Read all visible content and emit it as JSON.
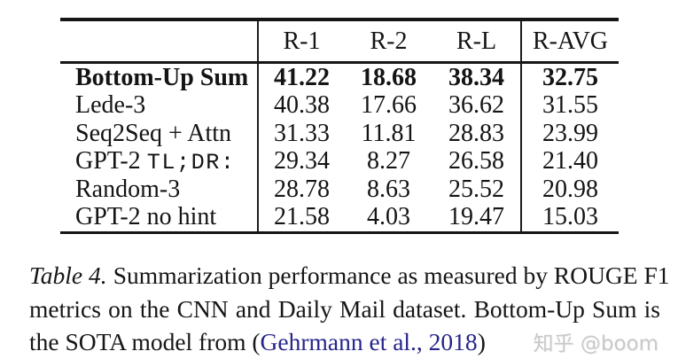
{
  "colors": {
    "text": "#141414",
    "rule_black": "#161616",
    "citation_blue": "#26268c",
    "watermark_gray": "#c9c9c9",
    "background": "#ffffff"
  },
  "table": {
    "col_headers": [
      "R-1",
      "R-2",
      "R-L",
      "R-AVG"
    ],
    "rows": [
      {
        "label": "Bottom-Up Sum",
        "values": [
          "41.22",
          "18.68",
          "38.34",
          "32.75"
        ]
      },
      {
        "label": "Lede-3",
        "values": [
          "40.38",
          "17.66",
          "36.62",
          "31.55"
        ]
      },
      {
        "label": "Seq2Seq + Attn",
        "values": [
          "31.33",
          "11.81",
          "28.83",
          "23.99"
        ]
      },
      {
        "label": "GPT-2",
        "label_mono": "TL;DR:",
        "values": [
          "29.34",
          "8.27",
          "26.58",
          "21.40"
        ]
      },
      {
        "label": "Random-3",
        "values": [
          "28.78",
          "8.63",
          "25.52",
          "20.98"
        ]
      },
      {
        "label": "GPT-2 no hint",
        "values": [
          "21.58",
          "4.03",
          "19.47",
          "15.03"
        ]
      }
    ]
  },
  "caption": {
    "tag": "Table 4.",
    "line1_rest": "Summarization performance as measured by ROUGE F1",
    "line2": "metrics on the CNN and Daily Mail dataset. Bottom-Up Sum is",
    "line3_pre": "the SOTA model from (",
    "citation": "Gehrmann et al., 2018",
    "line3_post": ")"
  },
  "watermark": {
    "text": "知乎 @boom"
  }
}
